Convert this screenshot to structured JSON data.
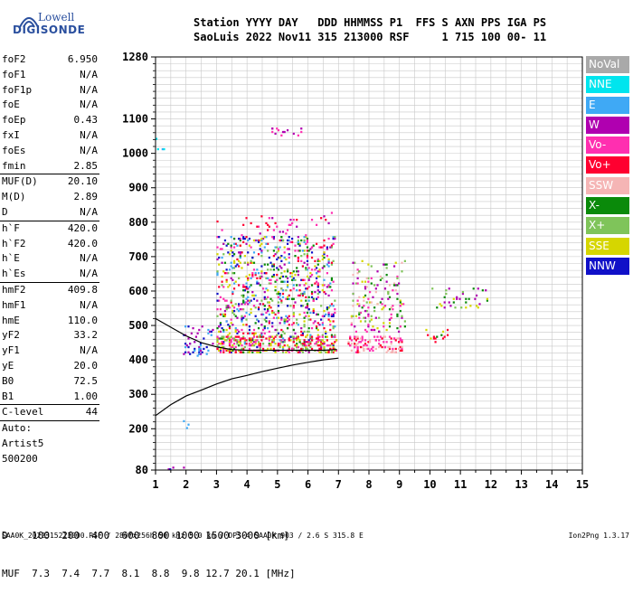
{
  "logo": {
    "brand_line1": "Lowell",
    "brand_line2": "DIGISONDE"
  },
  "header": {
    "line1": "Station YYYY DAY   DDD HHMMSS P1  FFS S AXN PPS IGA PS",
    "line2": "SaoLuis 2022 Nov11 315 213000 RSF     1 715 100 00- 11"
  },
  "params": [
    {
      "name": "foF2",
      "value": "6.950"
    },
    {
      "name": "foF1",
      "value": "N/A"
    },
    {
      "name": "foF1p",
      "value": "N/A"
    },
    {
      "name": "foE",
      "value": "N/A"
    },
    {
      "name": "foEp",
      "value": "0.43"
    },
    {
      "name": "fxI",
      "value": "N/A"
    },
    {
      "name": "foEs",
      "value": "N/A"
    },
    {
      "name": "fmin",
      "value": "2.85"
    },
    {
      "sep": true
    },
    {
      "name": "MUF(D)",
      "value": "20.10"
    },
    {
      "name": "M(D)",
      "value": "2.89"
    },
    {
      "name": "D",
      "value": "N/A"
    },
    {
      "sep": true
    },
    {
      "name": "h`F",
      "value": "420.0"
    },
    {
      "name": "h`F2",
      "value": "420.0"
    },
    {
      "name": "h`E",
      "value": "N/A"
    },
    {
      "name": "h`Es",
      "value": "N/A"
    },
    {
      "sep": true
    },
    {
      "name": "hmF2",
      "value": "409.8"
    },
    {
      "name": "hmF1",
      "value": "N/A"
    },
    {
      "name": "hmE",
      "value": "110.0"
    },
    {
      "name": "yF2",
      "value": "33.2"
    },
    {
      "name": "yF1",
      "value": "N/A"
    },
    {
      "name": "yE",
      "value": "20.0"
    },
    {
      "name": "B0",
      "value": "72.5"
    },
    {
      "name": "B1",
      "value": "1.00"
    },
    {
      "sep": true
    },
    {
      "name": "C-level",
      "value": "44"
    },
    {
      "sep": true
    }
  ],
  "autoscale": [
    "Auto:",
    "Artist5",
    "500200"
  ],
  "legend": [
    {
      "label": "NoVal",
      "color": "#a9a9a9"
    },
    {
      "label": "NNE",
      "color": "#00e5ee"
    },
    {
      "label": "E",
      "color": "#3fa9f5"
    },
    {
      "label": "W",
      "color": "#b000b0"
    },
    {
      "label": "Vo-",
      "color": "#ff2fb0"
    },
    {
      "label": "Vo+",
      "color": "#ff0030"
    },
    {
      "label": "SSW",
      "color": "#f5b5b5"
    },
    {
      "label": "X-",
      "color": "#0a8a0a"
    },
    {
      "label": "X+",
      "color": "#7fc45a"
    },
    {
      "label": "SSE",
      "color": "#d6d600"
    },
    {
      "label": "NNW",
      "color": "#1010c8"
    }
  ],
  "muf_table": {
    "d_label": "D",
    "d_values": [
      "100",
      "200",
      "400",
      "600",
      "800",
      "1000",
      "1500",
      "3000"
    ],
    "d_unit": "[km]",
    "muf_label": "MUF",
    "muf_values": [
      "7.3",
      "7.4",
      "7.7",
      "8.1",
      "8.8",
      "9.8",
      "12.7",
      "20.1"
    ],
    "muf_unit": "[MHz]"
  },
  "footer": {
    "left": "SAA0K_2022315213000.RSF / 280fx256h 50 kHz 5.0 km / DPS-4 SAA0K 903 / 2.6 S 315.8 E",
    "right": "Ion2Png 1.3.17"
  },
  "chart_data": {
    "type": "scatter",
    "x_ticks": [
      1,
      2,
      3,
      4,
      5,
      6,
      7,
      8,
      9,
      10,
      11,
      12,
      13,
      14,
      15
    ],
    "y_ticks": [
      80,
      200,
      300,
      400,
      500,
      600,
      700,
      800,
      900,
      1000,
      1100,
      1280
    ],
    "xlim": [
      1,
      15
    ],
    "ylim": [
      80,
      1280
    ],
    "grid": true,
    "trace_virtual": [
      [
        1.0,
        520
      ],
      [
        1.5,
        495
      ],
      [
        2.0,
        470
      ],
      [
        2.5,
        450
      ],
      [
        3.0,
        438
      ],
      [
        3.5,
        430
      ],
      [
        4.0,
        428
      ],
      [
        4.5,
        428
      ],
      [
        5.0,
        428
      ],
      [
        5.5,
        428
      ],
      [
        6.0,
        428
      ],
      [
        6.5,
        428
      ],
      [
        6.95,
        430
      ]
    ],
    "trace_true": [
      [
        1.0,
        238
      ],
      [
        1.5,
        270
      ],
      [
        2.0,
        295
      ],
      [
        2.5,
        312
      ],
      [
        3.0,
        330
      ],
      [
        3.5,
        345
      ],
      [
        4.0,
        355
      ],
      [
        4.5,
        366
      ],
      [
        5.0,
        376
      ],
      [
        5.5,
        385
      ],
      [
        6.0,
        393
      ],
      [
        6.5,
        400
      ],
      [
        7.0,
        405
      ]
    ],
    "echo_clusters": [
      {
        "x": [
          3.0,
          6.9
        ],
        "y": [
          420,
          760
        ],
        "density": 1.0,
        "mix": [
          "W",
          "Vo-",
          "Vo+",
          "X-",
          "X+",
          "SSE",
          "NNW",
          "E"
        ]
      },
      {
        "x": [
          3.0,
          7.0
        ],
        "y": [
          420,
          470
        ],
        "density": 1.6,
        "mix": [
          "Vo+",
          "Vo-",
          "X+",
          "SSE"
        ]
      },
      {
        "x": [
          7.3,
          9.1
        ],
        "y": [
          420,
          470
        ],
        "density": 1.8,
        "mix": [
          "Vo+",
          "Vo-",
          "SSW"
        ]
      },
      {
        "x": [
          7.4,
          9.2
        ],
        "y": [
          480,
          690
        ],
        "density": 0.6,
        "mix": [
          "W",
          "Vo-",
          "SSE",
          "X+",
          "X-",
          "SSW"
        ]
      },
      {
        "x": [
          9.8,
          10.6
        ],
        "y": [
          440,
          490
        ],
        "density": 0.5,
        "mix": [
          "Vo+",
          "X-",
          "SSE"
        ]
      },
      {
        "x": [
          10.0,
          11.9
        ],
        "y": [
          550,
          610
        ],
        "density": 0.45,
        "mix": [
          "X-",
          "X+",
          "SSE",
          "W"
        ]
      },
      {
        "x": [
          1.9,
          2.9
        ],
        "y": [
          410,
          500
        ],
        "density": 0.8,
        "mix": [
          "NNW",
          "W",
          "E"
        ]
      },
      {
        "x": [
          4.5,
          6.0
        ],
        "y": [
          1050,
          1075
        ],
        "density": 0.5,
        "mix": [
          "W",
          "Vo-"
        ]
      },
      {
        "x": [
          1.0,
          1.3
        ],
        "y": [
          1000,
          1060
        ],
        "density": 0.3,
        "mix": [
          "E",
          "NNE"
        ]
      },
      {
        "x": [
          1.0,
          2.2
        ],
        "y": [
          80,
          90
        ],
        "density": 0.6,
        "mix": [
          "NNW",
          "W"
        ]
      },
      {
        "x": [
          1.9,
          2.1
        ],
        "y": [
          190,
          240
        ],
        "density": 0.4,
        "mix": [
          "E",
          "Vo-"
        ]
      },
      {
        "x": [
          3.0,
          6.8
        ],
        "y": [
          760,
          830
        ],
        "density": 0.2,
        "mix": [
          "W",
          "Vo+",
          "Vo-"
        ]
      }
    ]
  }
}
